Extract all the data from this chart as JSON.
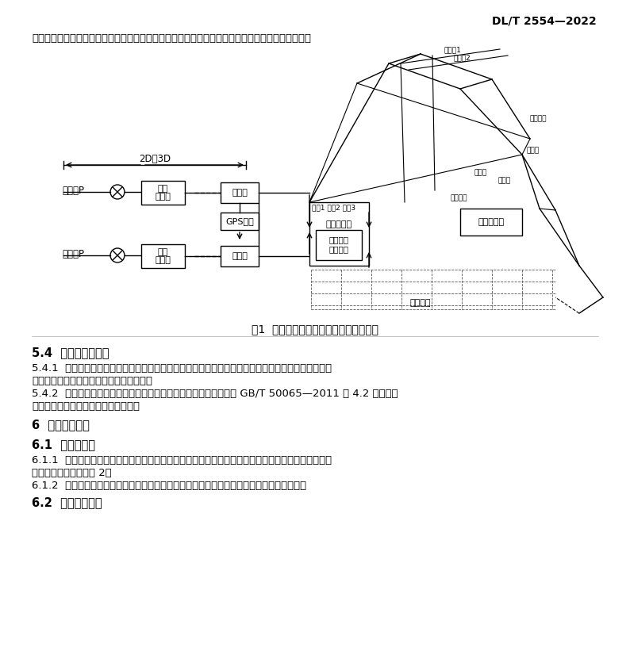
{
  "page_width": 7.94,
  "page_height": 8.31,
  "dpi": 100,
  "bg_color": "#ffffff",
  "header_text": "DL/T 2554—2022",
  "intro_text": "作为零电位参考点，测试设备的绕缘水平应与接地极线路一致，此时地电位升测试结果可不做修正。",
  "fig_caption": "图1  典型暂态地电位升的测试回路示意图",
  "section_54_title": "5.4  测量结果的评估",
  "section_541_text1": "5.4.1  不同距离测量点下的测试结果利用拟合外推来修正地电位升，外推公式应能反映地电位到无穷远",
  "section_541_text2": "衰减到零的特点，如采用负指数函数形式。",
  "section_542_text1": "5.4.2  测试的地电位升折算到最大短路故障电流下的实际值，并按照 GB/T 50065—2011 中 4.2 规定的电",
  "section_542_text2": "位升高值对测试的地电位升进行评估。",
  "section_6_title": "6  暂态电流测量",
  "section_61_title": "6.1  测点的选择",
  "section_611_text1": "6.1.1  在近区人工接地短路时，暂态电流测量包括总短路电流测量、杆塔电流分布的测量和变电站短路",
  "section_611_text2": "电流分布的测量，见图 2。",
  "section_612_text": "6.1.2  在非近区人工接地短路时，暂态电流测量包括总短路电流测量、杆塔电流分布的测量。",
  "section_62_title": "6.2  测试设备要求"
}
